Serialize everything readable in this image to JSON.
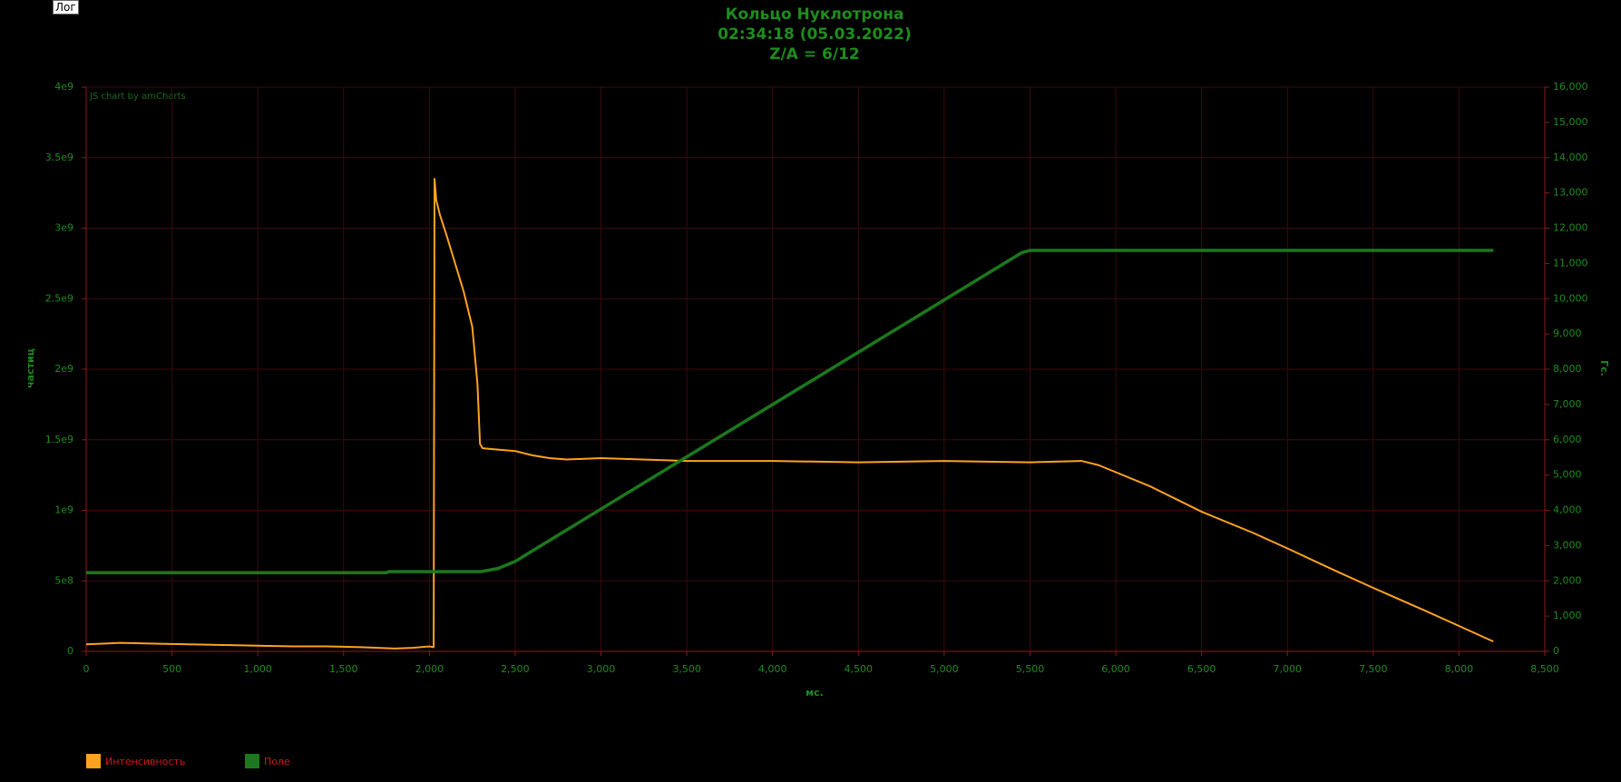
{
  "button": "Лог",
  "chart_data": {
    "type": "line",
    "title": "Кольцо Нуклотрона",
    "subtitle": [
      "02:34:18 (05.03.2022)",
      "Z/A = 6/12"
    ],
    "credit": "JS chart by amCharts",
    "x_label": "мс.",
    "y_label": "частиц",
    "y2_label": "Гс.",
    "xlim": [
      0,
      8500
    ],
    "xticks": [
      0,
      500,
      {
        "value": 1000,
        "label": "1,000"
      },
      {
        "value": 1500,
        "label": "1,500"
      },
      {
        "value": 2000,
        "label": "2,000"
      },
      {
        "value": 2500,
        "label": "2,500"
      },
      {
        "value": 3000,
        "label": "3,000"
      },
      {
        "value": 3500,
        "label": "3,500"
      },
      {
        "value": 4000,
        "label": "4,000"
      },
      {
        "value": 4500,
        "label": "4,500"
      },
      {
        "value": 5000,
        "label": "5,000"
      },
      {
        "value": 5500,
        "label": "5,500"
      },
      {
        "value": 6000,
        "label": "6,000"
      },
      {
        "value": 6500,
        "label": "6,500"
      },
      {
        "value": 7000,
        "label": "7,000"
      },
      {
        "value": 7500,
        "label": "7,500"
      },
      {
        "value": 8000,
        "label": "8,000"
      },
      {
        "value": 8500,
        "label": "8,500"
      }
    ],
    "ylim": [
      0,
      4000000000
    ],
    "yticks": [
      0,
      {
        "value": 500000000,
        "label": "5e8"
      },
      {
        "value": 1000000000,
        "label": "1e9"
      },
      {
        "value": 1500000000,
        "label": "1.5e9"
      },
      {
        "value": 2000000000,
        "label": "2e9"
      },
      {
        "value": 2500000000,
        "label": "2.5e9"
      },
      {
        "value": 3000000000,
        "label": "3e9"
      },
      {
        "value": 3500000000,
        "label": "3.5e9"
      },
      {
        "value": 4000000000,
        "label": "4e9"
      }
    ],
    "y2lim": [
      0,
      16000
    ],
    "y2ticks": [
      0,
      {
        "value": 1000,
        "label": "1,000"
      },
      {
        "value": 2000,
        "label": "2,000"
      },
      {
        "value": 3000,
        "label": "3,000"
      },
      {
        "value": 4000,
        "label": "4,000"
      },
      {
        "value": 5000,
        "label": "5,000"
      },
      {
        "value": 6000,
        "label": "6,000"
      },
      {
        "value": 7000,
        "label": "7,000"
      },
      {
        "value": 8000,
        "label": "8,000"
      },
      {
        "value": 9000,
        "label": "9,000"
      },
      {
        "value": 10000,
        "label": "10,000"
      },
      {
        "value": 11000,
        "label": "11,000"
      },
      {
        "value": 12000,
        "label": "12,000"
      },
      {
        "value": 13000,
        "label": "13,000"
      },
      {
        "value": 14000,
        "label": "14,000"
      },
      {
        "value": 15000,
        "label": "15,000"
      },
      {
        "value": 16000,
        "label": "16,000"
      }
    ],
    "grid": true,
    "series": [
      {
        "name": "Интенсивность",
        "color": "#ffa21f",
        "axis": "y",
        "x": [
          0,
          200,
          400,
          600,
          800,
          1000,
          1200,
          1400,
          1600,
          1800,
          1900,
          2000,
          2025,
          2030,
          2040,
          2060,
          2100,
          2150,
          2200,
          2250,
          2280,
          2295,
          2310,
          2400,
          2500,
          2600,
          2700,
          2800,
          3000,
          3500,
          4000,
          4500,
          5000,
          5500,
          5800,
          5900,
          6000,
          6200,
          6500,
          6800,
          7000,
          7300,
          7500,
          7800,
          8000,
          8200
        ],
        "values": [
          50000000,
          60000000,
          55000000,
          50000000,
          45000000,
          40000000,
          35000000,
          35000000,
          30000000,
          20000000,
          25000000,
          35000000,
          30000000,
          3350000000,
          3200000000,
          3100000000,
          2950000000,
          2750000000,
          2550000000,
          2300000000,
          1900000000,
          1470000000,
          1440000000,
          1430000000,
          1420000000,
          1390000000,
          1370000000,
          1360000000,
          1370000000,
          1350000000,
          1350000000,
          1340000000,
          1350000000,
          1340000000,
          1350000000,
          1320000000,
          1270000000,
          1170000000,
          990000000,
          840000000,
          730000000,
          560000000,
          450000000,
          290000000,
          180000000,
          70000000
        ]
      },
      {
        "name": "Поле",
        "color": "#1c781c",
        "axis": "y2",
        "x": [
          0,
          1750,
          1760,
          2300,
          2400,
          2500,
          2600,
          5400,
          5450,
          5500,
          8200
        ],
        "values": [
          2230,
          2230,
          2260,
          2260,
          2350,
          2550,
          2850,
          11150,
          11300,
          11370,
          11370
        ]
      }
    ]
  }
}
